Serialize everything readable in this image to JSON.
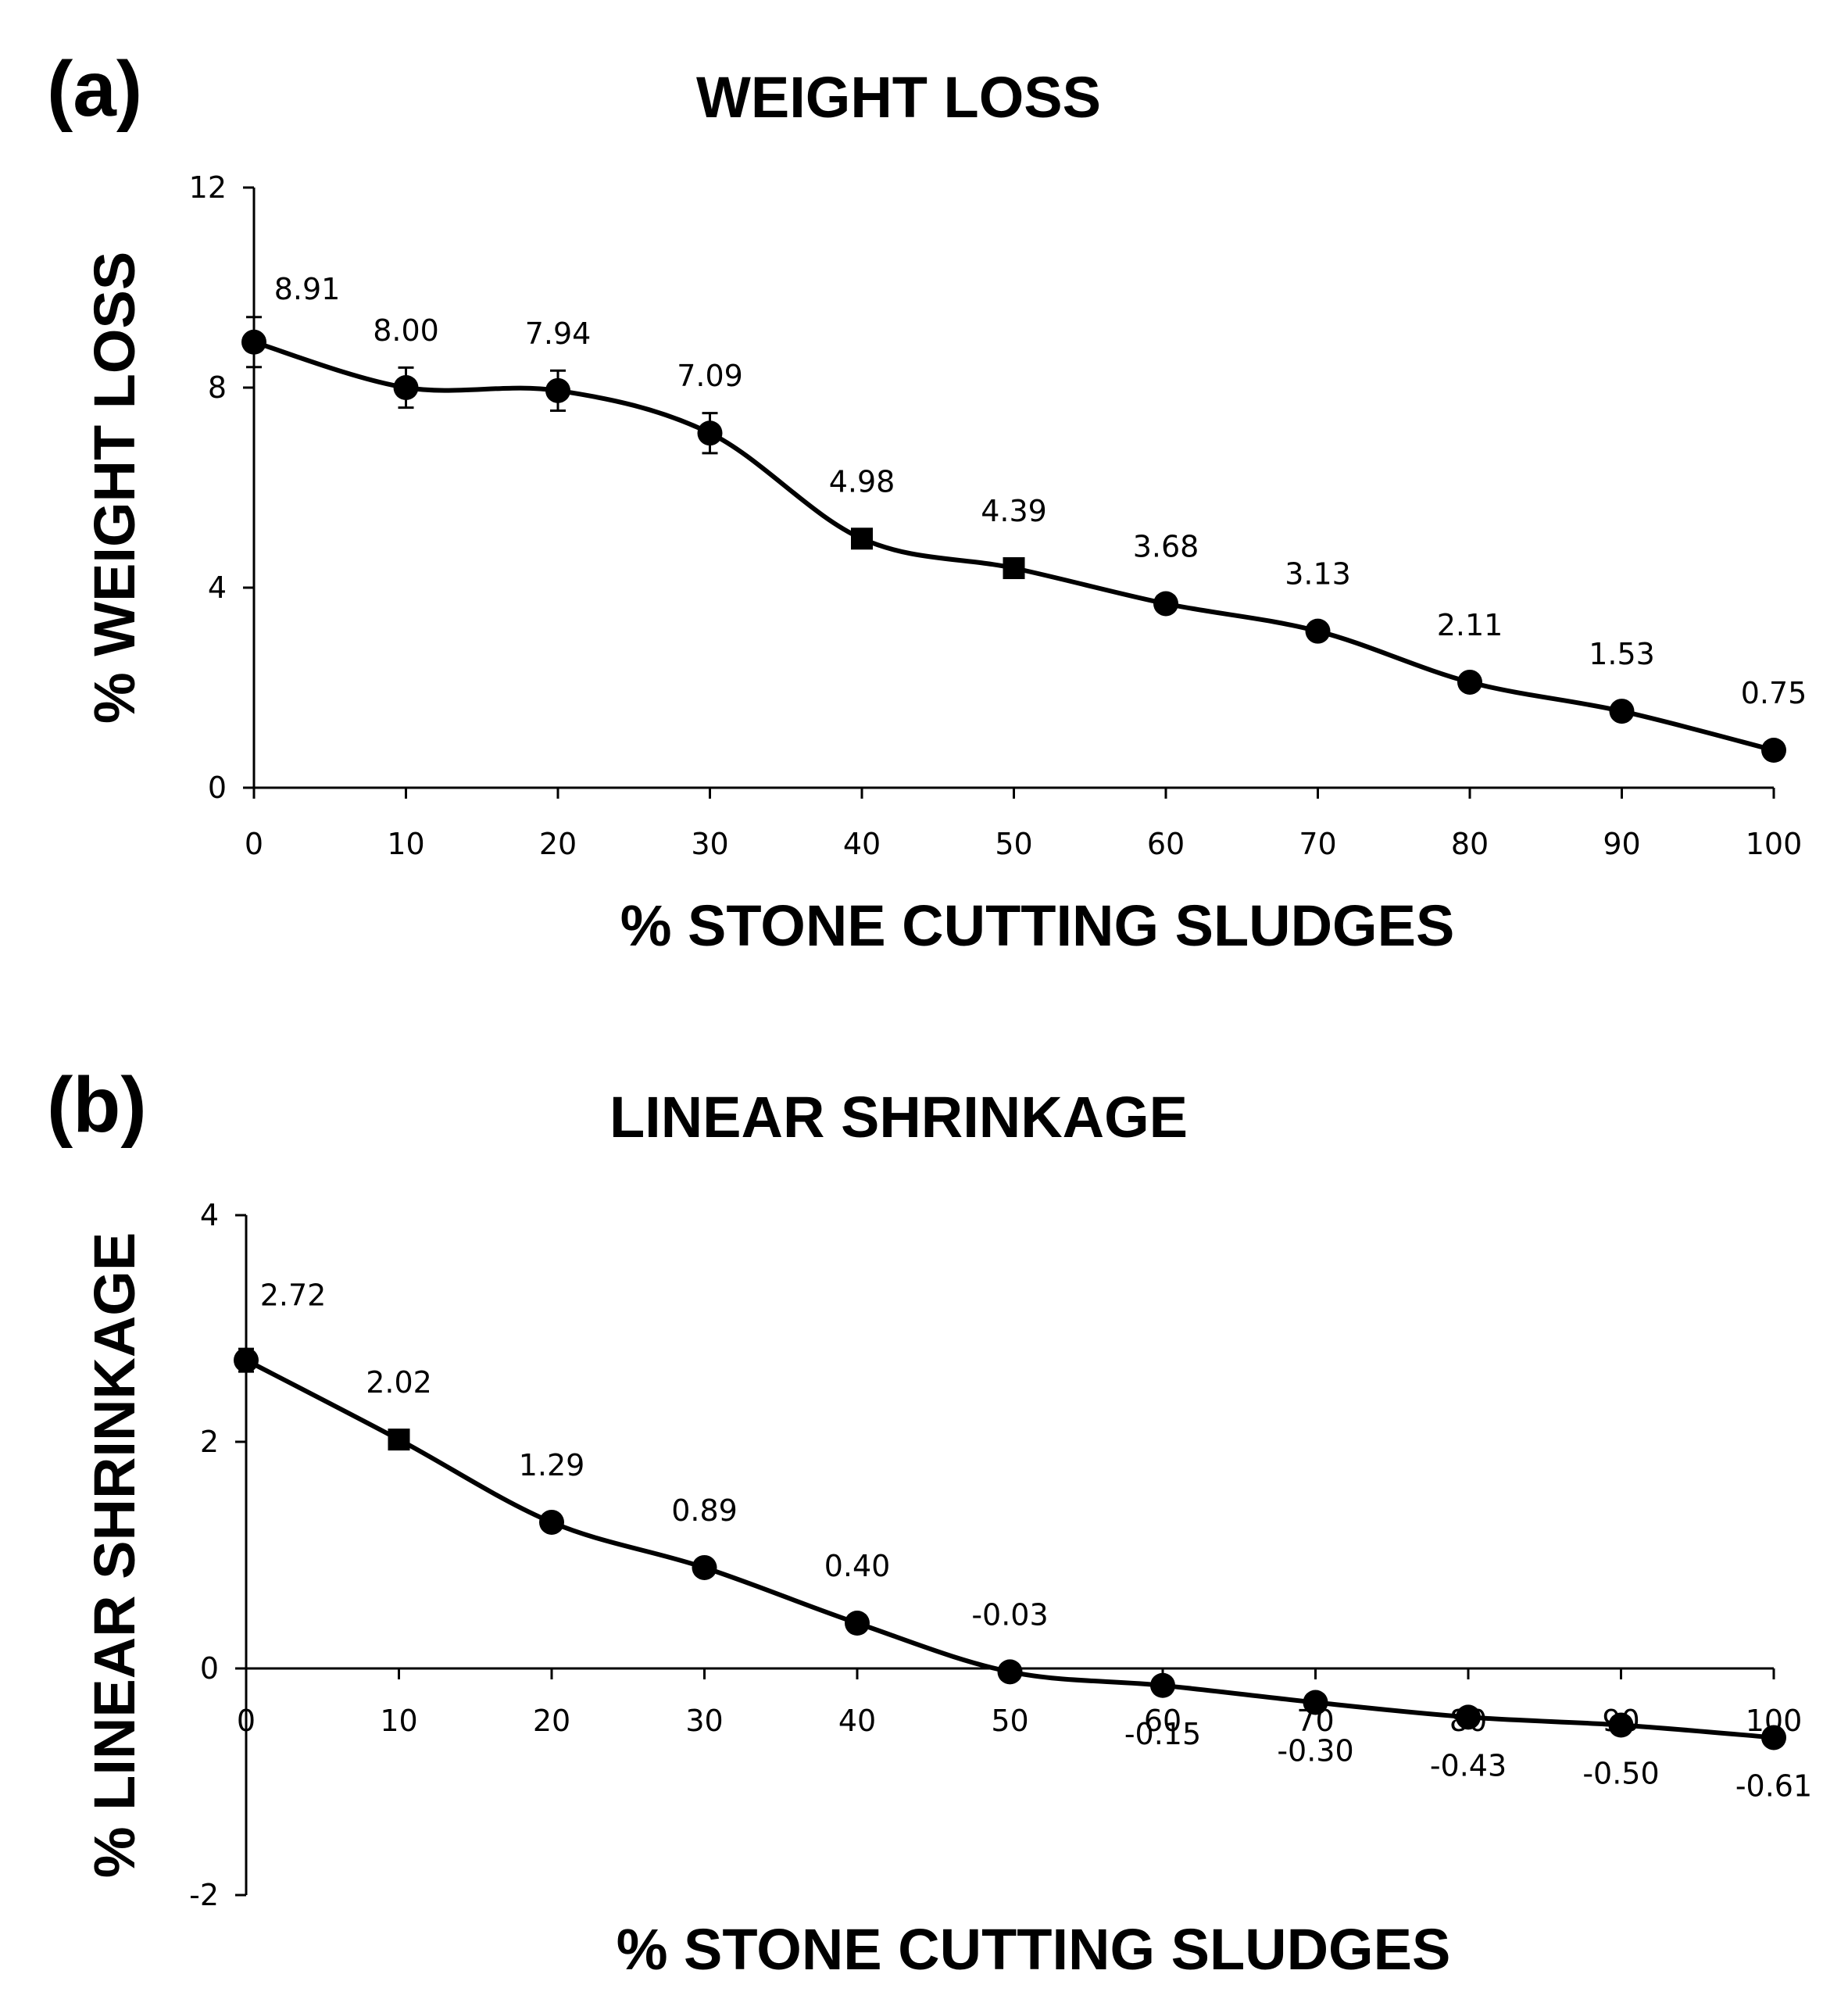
{
  "chart_data": [
    {
      "type": "line",
      "panel_label": "(a)",
      "title": "WEIGHT LOSS",
      "xlabel": "%  STONE CUTTING SLUDGES",
      "ylabel": "% WEIGHT LOSS",
      "x": [
        0,
        10,
        20,
        30,
        40,
        50,
        60,
        70,
        80,
        90,
        100
      ],
      "x_ticks": [
        "0",
        "10",
        "20",
        "30",
        "40",
        "50",
        "60",
        "70",
        "80",
        "90",
        "100"
      ],
      "y_ticks": [
        "0",
        "4",
        "8",
        "12"
      ],
      "xlim": [
        0,
        100
      ],
      "ylim": [
        0,
        12
      ],
      "grid": false,
      "series": [
        {
          "values": [
            8.91,
            8.0,
            7.94,
            7.09,
            4.98,
            4.39,
            3.68,
            3.13,
            2.11,
            1.53,
            0.75
          ],
          "labels": [
            "8.91",
            "8.00",
            "7.94",
            "7.09",
            "4.98",
            "4.39",
            "3.68",
            "3.13",
            "2.11",
            "1.53",
            "0.75"
          ],
          "error": [
            0.5,
            0.4,
            0.4,
            0.4,
            0.15,
            0.15,
            0.1,
            0.1,
            0.1,
            0.1,
            0.1
          ]
        }
      ]
    },
    {
      "type": "line",
      "panel_label": "(b)",
      "title": "LINEAR SHRINKAGE",
      "xlabel": "%  STONE CUTTING SLUDGES",
      "ylabel": "% LINEAR SHRINKAGE",
      "x": [
        0,
        10,
        20,
        30,
        40,
        50,
        60,
        70,
        80,
        90,
        100
      ],
      "x_ticks": [
        "0",
        "10",
        "20",
        "30",
        "40",
        "50",
        "60",
        "70",
        "80",
        "90",
        "100"
      ],
      "y_ticks": [
        "-2",
        "0",
        "2",
        "4"
      ],
      "xlim": [
        0,
        100
      ],
      "ylim": [
        -2,
        4
      ],
      "grid": false,
      "series": [
        {
          "values": [
            2.72,
            2.02,
            1.29,
            0.89,
            0.4,
            -0.03,
            -0.15,
            -0.3,
            -0.43,
            -0.5,
            -0.61
          ],
          "labels": [
            "2.72",
            "2.02",
            "1.29",
            "0.89",
            "0.40",
            "-0.03",
            "-0.15",
            "-0.30",
            "-0.43",
            "-0.50",
            "-0.61"
          ],
          "error": [
            0.1,
            0.06,
            0.04,
            0.03,
            0.03,
            0.03,
            0.03,
            0.03,
            0.03,
            0.03,
            0.03
          ]
        }
      ]
    }
  ]
}
